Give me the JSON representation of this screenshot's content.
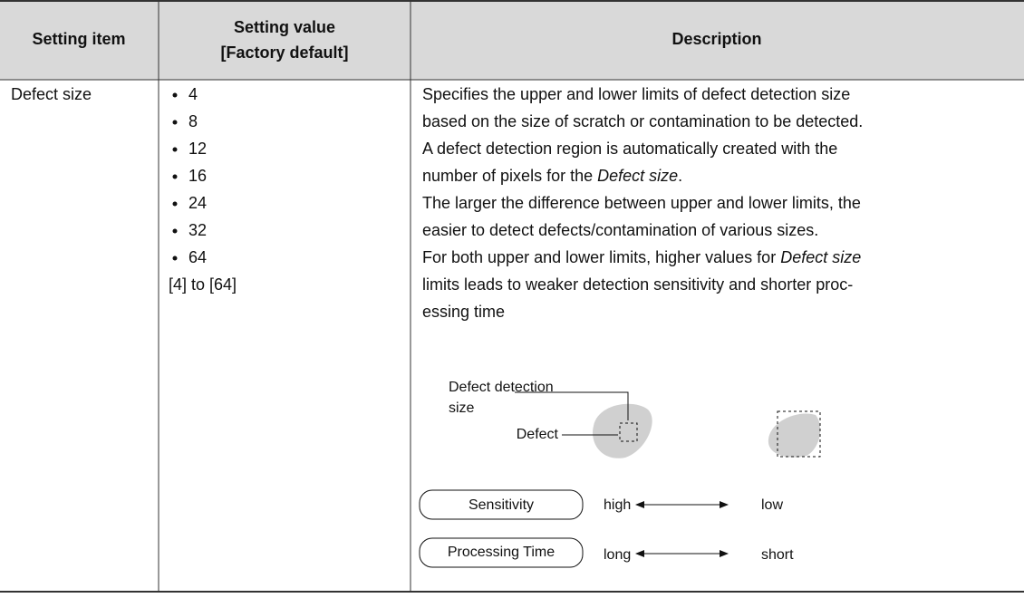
{
  "table": {
    "header": {
      "setting_item": "Setting item",
      "setting_value_lines": [
        "Setting value",
        "[Factory default]"
      ],
      "description": "Description"
    },
    "row": {
      "setting_item": "Defect size",
      "values": [
        "4",
        "8",
        "12",
        "16",
        "24",
        "32",
        "64"
      ],
      "range": "[4] to [64]",
      "description_lines": [
        [
          "Specifies the upper and lower limits of defect detection size"
        ],
        [
          "based on the size of scratch or contamination to be detected."
        ],
        [
          "A defect detection region is automatically created with the"
        ],
        [
          "number of pixels for the ",
          {
            "text": "Defect size",
            "italic": true
          },
          "."
        ],
        [
          "The larger the difference between upper and lower limits, the"
        ],
        [
          "easier to detect defects/contamination of various sizes."
        ],
        [
          "For both upper and lower limits, higher values for ",
          {
            "text": "Defect size",
            "italic": true
          }
        ],
        [
          "limits leads to weaker detection sensitivity and shorter proc-"
        ],
        [
          "essing time"
        ]
      ],
      "diagram": {
        "detection_size_lines": [
          "Defect detection",
          "size"
        ],
        "defect": "Defect",
        "sensitivity": {
          "label": "Sensitivity",
          "left": "high",
          "right": "low"
        },
        "processing_time": {
          "label": "Processing Time",
          "left": "long",
          "right": "short"
        }
      }
    }
  }
}
